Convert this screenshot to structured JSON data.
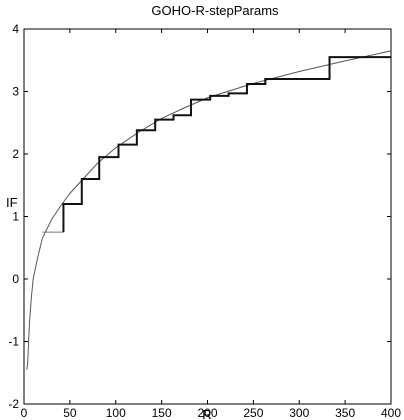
{
  "chart_data": {
    "type": "line",
    "title": "GOHO-R-stepParams",
    "xlabel": "R",
    "ylabel": "IF",
    "xlim": [
      0,
      400
    ],
    "ylim": [
      -2,
      4
    ],
    "grid": false,
    "x_ticks": [
      "0",
      "50",
      "100",
      "150",
      "200",
      "250",
      "300",
      "350",
      "400"
    ],
    "y_ticks": [
      "-2",
      "-1",
      "0",
      "1",
      "2",
      "3",
      "4"
    ],
    "series": [
      {
        "style": "smooth curve",
        "color": "#555555",
        "x": [
          3,
          4,
          5,
          6,
          8,
          10,
          15,
          20,
          30,
          40,
          50,
          60,
          80,
          100,
          125,
          150,
          175,
          200,
          250,
          300,
          350,
          400
        ],
        "y": [
          -1.45,
          -1.35,
          -1.0,
          -0.7,
          -0.3,
          0.0,
          0.35,
          0.65,
          0.95,
          1.17,
          1.37,
          1.53,
          1.85,
          2.1,
          2.35,
          2.57,
          2.74,
          2.9,
          3.13,
          3.32,
          3.49,
          3.65
        ]
      },
      {
        "style": "thin step",
        "color": "#777777",
        "x": [
          20,
          43,
          43,
          63,
          63,
          82,
          82,
          103,
          103,
          123,
          123,
          143,
          143,
          163,
          163,
          182,
          182,
          203,
          203,
          223,
          223,
          243,
          243,
          263,
          263,
          333,
          333,
          400
        ],
        "y": [
          0.75,
          0.75,
          1.2,
          1.2,
          1.6,
          1.6,
          1.95,
          1.95,
          2.15,
          2.15,
          2.38,
          2.38,
          2.55,
          2.55,
          2.62,
          2.62,
          2.87,
          2.87,
          2.93,
          2.93,
          2.97,
          2.97,
          3.12,
          3.12,
          3.2,
          3.2,
          3.55,
          3.55
        ]
      },
      {
        "style": "thick step",
        "color": "#111111",
        "x": [
          43,
          43,
          63,
          63,
          82,
          82,
          103,
          103,
          123,
          123,
          143,
          143,
          163,
          163,
          182,
          182,
          203,
          203,
          223,
          223,
          243,
          243,
          263,
          263,
          333,
          333,
          400
        ],
        "y": [
          0.75,
          1.2,
          1.2,
          1.6,
          1.6,
          1.95,
          1.95,
          2.15,
          2.15,
          2.38,
          2.38,
          2.55,
          2.55,
          2.62,
          2.62,
          2.87,
          2.87,
          2.93,
          2.93,
          2.97,
          2.97,
          3.12,
          3.12,
          3.2,
          3.2,
          3.55,
          3.55
        ]
      }
    ]
  }
}
